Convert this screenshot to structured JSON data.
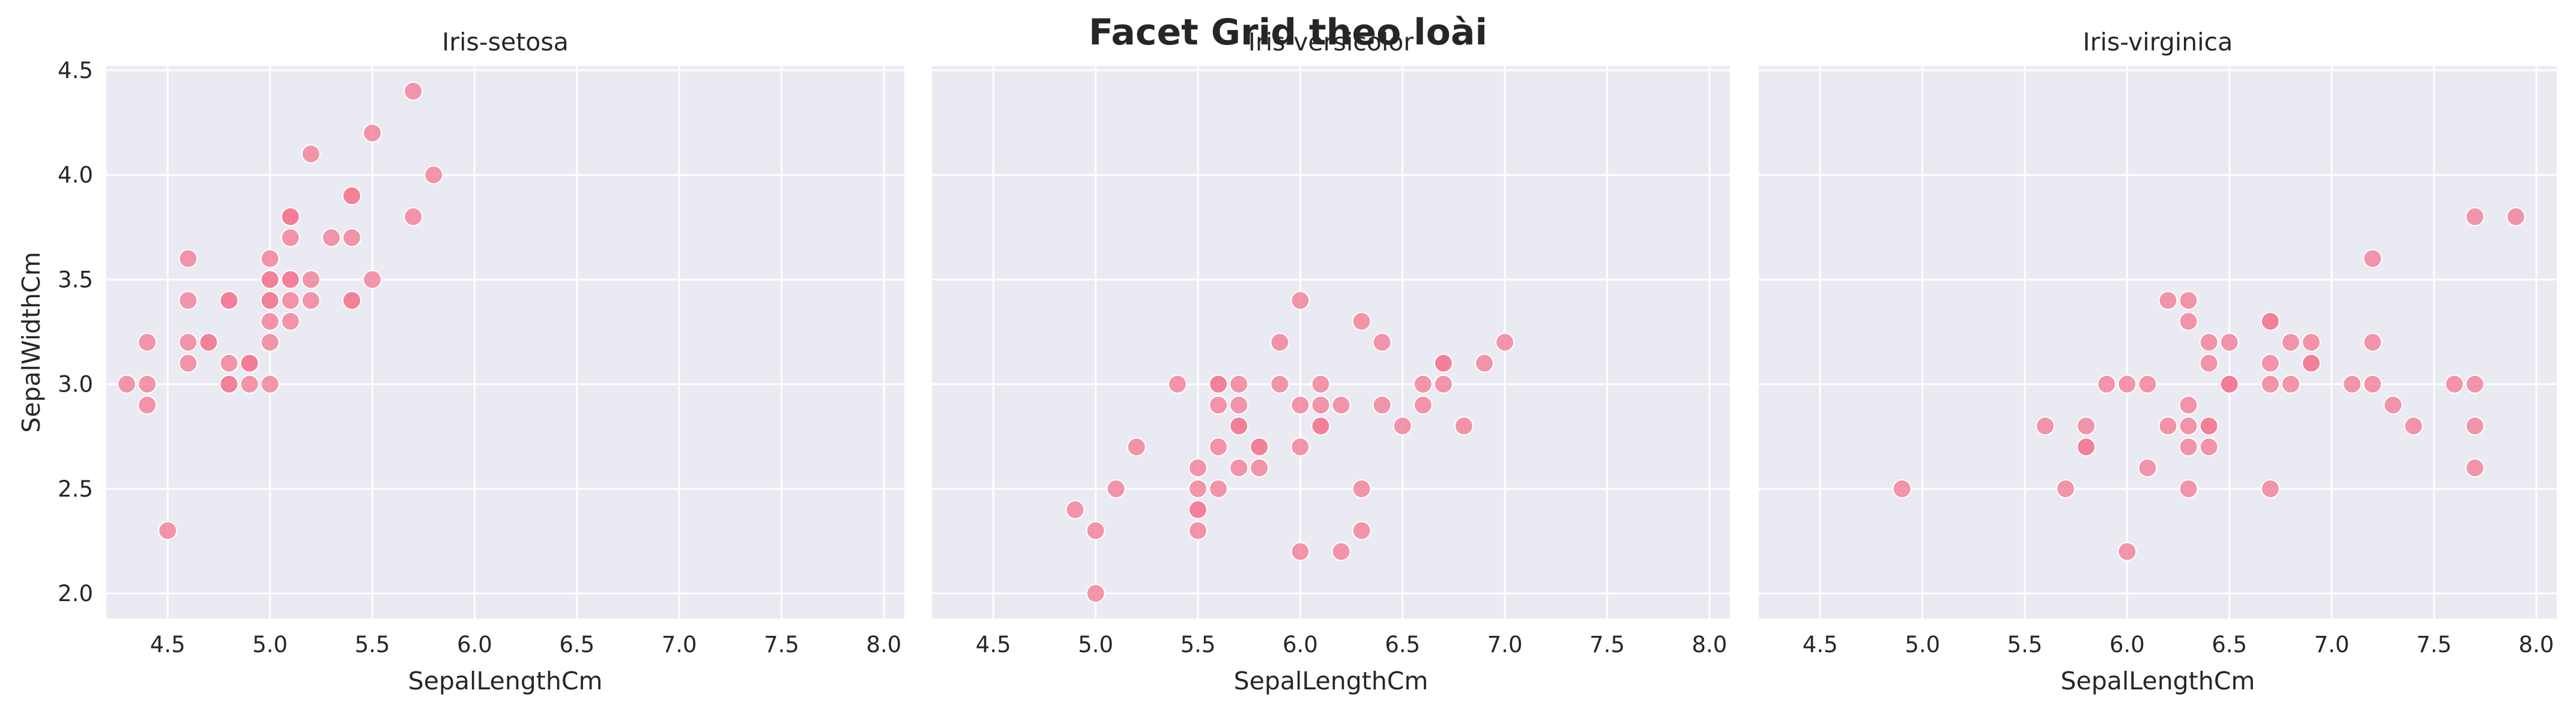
{
  "suptitle": "Facet Grid theo loài",
  "colors": {
    "panel_bg": "#EAEAF2",
    "grid": "#FFFFFF",
    "marker": "#F37B95",
    "marker_edge": "#FFFFFF",
    "text": "#262626"
  },
  "chart_data": {
    "type": "scatter",
    "xlabel": "SepalLengthCm",
    "ylabel": "SepalWidthCm",
    "xlim": [
      4.2,
      8.1
    ],
    "ylim": [
      1.88,
      4.52
    ],
    "xticks": [
      4.5,
      5.0,
      5.5,
      6.0,
      6.5,
      7.0,
      7.5,
      8.0
    ],
    "yticks": [
      2.0,
      2.5,
      3.0,
      3.5,
      4.0,
      4.5
    ],
    "grid": true,
    "sharey": true,
    "facets": [
      {
        "title": "Iris-setosa",
        "points": [
          [
            5.1,
            3.5
          ],
          [
            4.9,
            3.0
          ],
          [
            4.7,
            3.2
          ],
          [
            4.6,
            3.1
          ],
          [
            5.0,
            3.6
          ],
          [
            5.4,
            3.9
          ],
          [
            4.6,
            3.4
          ],
          [
            5.0,
            3.4
          ],
          [
            4.4,
            2.9
          ],
          [
            4.9,
            3.1
          ],
          [
            5.4,
            3.7
          ],
          [
            4.8,
            3.4
          ],
          [
            4.8,
            3.0
          ],
          [
            4.3,
            3.0
          ],
          [
            5.8,
            4.0
          ],
          [
            5.7,
            4.4
          ],
          [
            5.4,
            3.9
          ],
          [
            5.1,
            3.5
          ],
          [
            5.7,
            3.8
          ],
          [
            5.1,
            3.8
          ],
          [
            5.4,
            3.4
          ],
          [
            5.1,
            3.7
          ],
          [
            4.6,
            3.6
          ],
          [
            5.1,
            3.3
          ],
          [
            4.8,
            3.4
          ],
          [
            5.0,
            3.0
          ],
          [
            5.0,
            3.4
          ],
          [
            5.2,
            3.5
          ],
          [
            5.2,
            3.4
          ],
          [
            4.7,
            3.2
          ],
          [
            4.8,
            3.1
          ],
          [
            5.4,
            3.4
          ],
          [
            5.2,
            4.1
          ],
          [
            5.5,
            4.2
          ],
          [
            4.9,
            3.1
          ],
          [
            5.0,
            3.2
          ],
          [
            5.5,
            3.5
          ],
          [
            4.9,
            3.1
          ],
          [
            4.4,
            3.0
          ],
          [
            5.1,
            3.4
          ],
          [
            5.0,
            3.5
          ],
          [
            4.5,
            2.3
          ],
          [
            4.4,
            3.2
          ],
          [
            5.0,
            3.5
          ],
          [
            5.1,
            3.8
          ],
          [
            4.8,
            3.0
          ],
          [
            5.1,
            3.8
          ],
          [
            4.6,
            3.2
          ],
          [
            5.3,
            3.7
          ],
          [
            5.0,
            3.3
          ]
        ]
      },
      {
        "title": "Iris-versicolor",
        "points": [
          [
            7.0,
            3.2
          ],
          [
            6.4,
            3.2
          ],
          [
            6.9,
            3.1
          ],
          [
            5.5,
            2.3
          ],
          [
            6.5,
            2.8
          ],
          [
            5.7,
            2.8
          ],
          [
            6.3,
            3.3
          ],
          [
            4.9,
            2.4
          ],
          [
            6.6,
            2.9
          ],
          [
            5.2,
            2.7
          ],
          [
            5.0,
            2.0
          ],
          [
            5.9,
            3.0
          ],
          [
            6.0,
            2.2
          ],
          [
            6.1,
            2.9
          ],
          [
            5.6,
            2.9
          ],
          [
            6.7,
            3.1
          ],
          [
            5.6,
            3.0
          ],
          [
            5.8,
            2.7
          ],
          [
            6.2,
            2.2
          ],
          [
            5.6,
            2.5
          ],
          [
            5.9,
            3.2
          ],
          [
            6.1,
            2.8
          ],
          [
            6.3,
            2.5
          ],
          [
            6.1,
            2.8
          ],
          [
            6.4,
            2.9
          ],
          [
            6.6,
            3.0
          ],
          [
            6.8,
            2.8
          ],
          [
            6.7,
            3.0
          ],
          [
            6.0,
            2.9
          ],
          [
            5.7,
            2.6
          ],
          [
            5.5,
            2.4
          ],
          [
            5.5,
            2.4
          ],
          [
            5.8,
            2.7
          ],
          [
            6.0,
            2.7
          ],
          [
            5.4,
            3.0
          ],
          [
            6.0,
            3.4
          ],
          [
            6.7,
            3.1
          ],
          [
            6.3,
            2.3
          ],
          [
            5.6,
            3.0
          ],
          [
            5.5,
            2.5
          ],
          [
            5.5,
            2.6
          ],
          [
            6.1,
            3.0
          ],
          [
            5.8,
            2.6
          ],
          [
            5.0,
            2.3
          ],
          [
            5.6,
            2.7
          ],
          [
            5.7,
            3.0
          ],
          [
            5.7,
            2.9
          ],
          [
            6.2,
            2.9
          ],
          [
            5.1,
            2.5
          ],
          [
            5.7,
            2.8
          ]
        ]
      },
      {
        "title": "Iris-virginica",
        "points": [
          [
            6.3,
            3.3
          ],
          [
            5.8,
            2.7
          ],
          [
            7.1,
            3.0
          ],
          [
            6.3,
            2.9
          ],
          [
            6.5,
            3.0
          ],
          [
            7.6,
            3.0
          ],
          [
            4.9,
            2.5
          ],
          [
            7.3,
            2.9
          ],
          [
            6.7,
            2.5
          ],
          [
            7.2,
            3.6
          ],
          [
            6.5,
            3.2
          ],
          [
            6.4,
            2.7
          ],
          [
            6.8,
            3.0
          ],
          [
            5.7,
            2.5
          ],
          [
            5.8,
            2.8
          ],
          [
            6.4,
            3.2
          ],
          [
            6.5,
            3.0
          ],
          [
            7.7,
            3.8
          ],
          [
            7.7,
            2.6
          ],
          [
            6.0,
            2.2
          ],
          [
            6.9,
            3.2
          ],
          [
            5.6,
            2.8
          ],
          [
            7.7,
            2.8
          ],
          [
            6.3,
            2.7
          ],
          [
            6.7,
            3.3
          ],
          [
            7.2,
            3.2
          ],
          [
            6.2,
            2.8
          ],
          [
            6.1,
            3.0
          ],
          [
            6.4,
            2.8
          ],
          [
            7.2,
            3.0
          ],
          [
            7.4,
            2.8
          ],
          [
            7.9,
            3.8
          ],
          [
            6.4,
            2.8
          ],
          [
            6.3,
            2.8
          ],
          [
            6.1,
            2.6
          ],
          [
            7.7,
            3.0
          ],
          [
            6.3,
            3.4
          ],
          [
            6.4,
            3.1
          ],
          [
            6.0,
            3.0
          ],
          [
            6.9,
            3.1
          ],
          [
            6.7,
            3.1
          ],
          [
            6.9,
            3.1
          ],
          [
            5.8,
            2.7
          ],
          [
            6.8,
            3.2
          ],
          [
            6.7,
            3.3
          ],
          [
            6.7,
            3.0
          ],
          [
            6.3,
            2.5
          ],
          [
            6.5,
            3.0
          ],
          [
            6.2,
            3.4
          ],
          [
            5.9,
            3.0
          ]
        ]
      }
    ]
  }
}
